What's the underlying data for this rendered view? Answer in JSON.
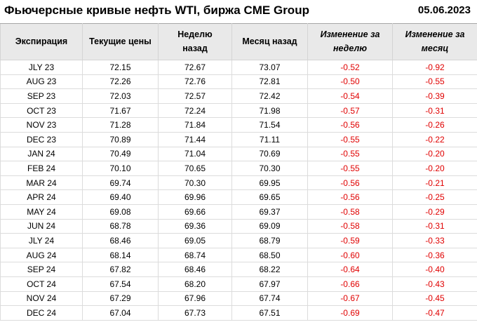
{
  "page": {
    "title": "Фьючерсные кривые нефть WTI, биржа CME Group",
    "date": "05.06.2023"
  },
  "chart_data": {
    "type": "table",
    "title": "Фьючерсные кривые нефть WTI, биржа CME Group",
    "date_label": "05.06.2023",
    "columns": [
      {
        "label": "Экспирация",
        "italic": false
      },
      {
        "label": "Текущие цены",
        "italic": false
      },
      {
        "label": "Неделю назад",
        "italic": false
      },
      {
        "label": "Месяц назад",
        "italic": false
      },
      {
        "label": "Изменение за неделю",
        "italic": true
      },
      {
        "label": "Изменение за месяц",
        "italic": true
      }
    ],
    "rows": [
      {
        "expiration": "JLY 23",
        "current": 72.15,
        "week_ago": 72.67,
        "month_ago": 73.07,
        "change_week": -0.52,
        "change_month": -0.92
      },
      {
        "expiration": "AUG 23",
        "current": 72.26,
        "week_ago": 72.76,
        "month_ago": 72.81,
        "change_week": -0.5,
        "change_month": -0.55
      },
      {
        "expiration": "SEP 23",
        "current": 72.03,
        "week_ago": 72.57,
        "month_ago": 72.42,
        "change_week": -0.54,
        "change_month": -0.39
      },
      {
        "expiration": "OCT 23",
        "current": 71.67,
        "week_ago": 72.24,
        "month_ago": 71.98,
        "change_week": -0.57,
        "change_month": -0.31
      },
      {
        "expiration": "NOV 23",
        "current": 71.28,
        "week_ago": 71.84,
        "month_ago": 71.54,
        "change_week": -0.56,
        "change_month": -0.26
      },
      {
        "expiration": "DEC 23",
        "current": 70.89,
        "week_ago": 71.44,
        "month_ago": 71.11,
        "change_week": -0.55,
        "change_month": -0.22
      },
      {
        "expiration": "JAN 24",
        "current": 70.49,
        "week_ago": 71.04,
        "month_ago": 70.69,
        "change_week": -0.55,
        "change_month": -0.2
      },
      {
        "expiration": "FEB 24",
        "current": 70.1,
        "week_ago": 70.65,
        "month_ago": 70.3,
        "change_week": -0.55,
        "change_month": -0.2
      },
      {
        "expiration": "MAR 24",
        "current": 69.74,
        "week_ago": 70.3,
        "month_ago": 69.95,
        "change_week": -0.56,
        "change_month": -0.21
      },
      {
        "expiration": "APR 24",
        "current": 69.4,
        "week_ago": 69.96,
        "month_ago": 69.65,
        "change_week": -0.56,
        "change_month": -0.25
      },
      {
        "expiration": "MAY 24",
        "current": 69.08,
        "week_ago": 69.66,
        "month_ago": 69.37,
        "change_week": -0.58,
        "change_month": -0.29
      },
      {
        "expiration": "JUN 24",
        "current": 68.78,
        "week_ago": 69.36,
        "month_ago": 69.09,
        "change_week": -0.58,
        "change_month": -0.31
      },
      {
        "expiration": "JLY 24",
        "current": 68.46,
        "week_ago": 69.05,
        "month_ago": 68.79,
        "change_week": -0.59,
        "change_month": -0.33
      },
      {
        "expiration": "AUG 24",
        "current": 68.14,
        "week_ago": 68.74,
        "month_ago": 68.5,
        "change_week": -0.6,
        "change_month": -0.36
      },
      {
        "expiration": "SEP 24",
        "current": 67.82,
        "week_ago": 68.46,
        "month_ago": 68.22,
        "change_week": -0.64,
        "change_month": -0.4
      },
      {
        "expiration": "OCT 24",
        "current": 67.54,
        "week_ago": 68.2,
        "month_ago": 67.97,
        "change_week": -0.66,
        "change_month": -0.43
      },
      {
        "expiration": "NOV 24",
        "current": 67.29,
        "week_ago": 67.96,
        "month_ago": 67.74,
        "change_week": -0.67,
        "change_month": -0.45
      },
      {
        "expiration": "DEC 24",
        "current": 67.04,
        "week_ago": 67.73,
        "month_ago": 67.51,
        "change_week": -0.69,
        "change_month": -0.47
      }
    ]
  },
  "style": {
    "negative_value_color": "#e00000",
    "header_background": "#e9e9e9",
    "grid_line_color": "#dcdcdc",
    "header_top_border": "#a6a6a6"
  }
}
